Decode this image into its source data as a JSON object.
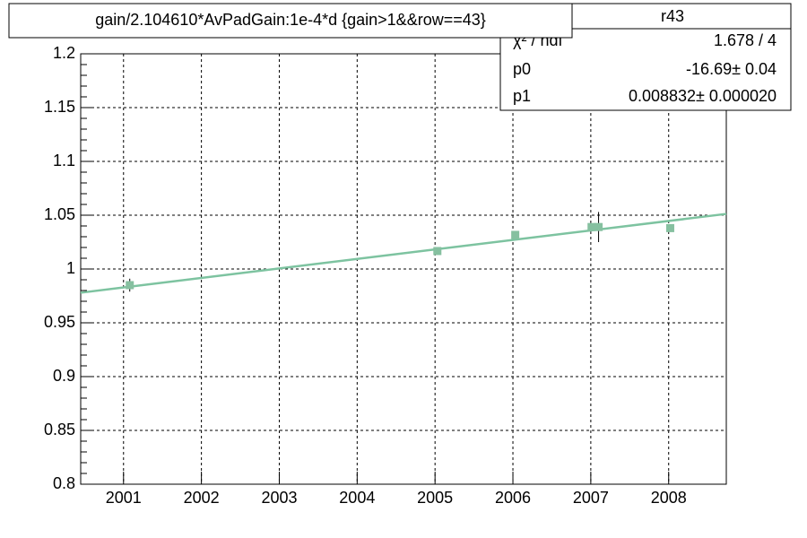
{
  "chart_data": {
    "type": "scatter",
    "title": "gain/2.104610*AvPadGain:1e-4*d  {gain>1&&row==43}",
    "x": [
      2001.08,
      2005.03,
      2006.03,
      2007.01,
      2007.1,
      2008.02
    ],
    "values": [
      0.985,
      1.0167,
      1.0317,
      1.039,
      1.039,
      1.038
    ],
    "errors": [
      0.006,
      0.003,
      0.003,
      0.003,
      0.014,
      0.003
    ],
    "color": "#86c0a0",
    "xlim": [
      2000.45,
      2008.74
    ],
    "xticks": [
      2001,
      2002,
      2003,
      2004,
      2005,
      2006,
      2007,
      2008
    ],
    "ylim": [
      0.8,
      1.2
    ],
    "yticks": [
      0.8,
      0.85,
      0.9,
      0.95,
      1,
      1.05,
      1.1,
      1.15,
      1.2
    ],
    "grid": true,
    "fit": {
      "color": "#7dc3a0",
      "p0": {
        "value": -16.69,
        "label": "-16.69± 0.04"
      },
      "p1": {
        "value": 0.008832,
        "label": "0.008832± 0.000020"
      }
    },
    "stats": {
      "title": "r43",
      "chi2_name": "χ² / ndf",
      "chi2": "1.678 / 4",
      "p0_name": "p0",
      "p1_name": "p1"
    }
  }
}
